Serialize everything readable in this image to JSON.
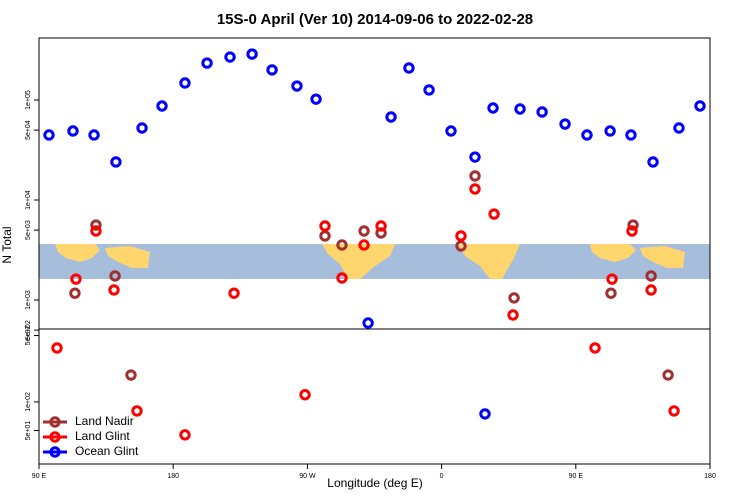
{
  "chart_data": [
    {
      "type": "scatter",
      "title": "15S-0 April (Ver 10)   2014-09-06 to 2022-02-28",
      "ylabel": "N Total",
      "log_y": true,
      "xlim": [
        90,
        540
      ],
      "ylim": [
        513,
        416900
      ],
      "yticks": [
        {
          "value": 500,
          "label": "5e+02"
        },
        {
          "value": 1000,
          "label": "1e+03"
        },
        {
          "value": 5000,
          "label": "5e+03"
        },
        {
          "value": 10000,
          "label": "1e+04"
        },
        {
          "value": 50000,
          "label": "5e+04"
        },
        {
          "value": 100000,
          "label": "1e+05"
        }
      ],
      "series": [
        {
          "name": "Land Nadir",
          "color": "#a03030",
          "x": [
            128.2,
            114.1,
            141.0,
            281.8,
            293.2,
            308.0,
            319.4,
            373.0,
            382.4,
            408.6,
            473.6,
            488.4,
            500.5
          ],
          "values": [
            5620,
            1170,
            1740,
            4370,
            3550,
            4900,
            4680,
            3470,
            17400,
            1050,
            1170,
            5620,
            1740
          ]
        },
        {
          "name": "Land Glint",
          "color": "#ff0000",
          "x": [
            128.2,
            114.8,
            140.3,
            220.8,
            281.8,
            293.2,
            308.0,
            319.4,
            373.0,
            382.4,
            395.2,
            407.9,
            474.3,
            487.7,
            500.5
          ],
          "values": [
            4900,
            1620,
            1260,
            1170,
            5500,
            1660,
            3550,
            5500,
            4370,
            12900,
            7240,
            708,
            1620,
            4900,
            1260
          ]
        },
        {
          "name": "Ocean Glint",
          "color": "#0000ff",
          "x": [
            96.7,
            112.8,
            126.9,
            141.6,
            159.1,
            172.5,
            187.9,
            202.7,
            218.1,
            232.9,
            246.3,
            263.0,
            275.8,
            326.1,
            338.1,
            351.6,
            366.3,
            382.4,
            394.5,
            412.6,
            427.4,
            442.8,
            457.5,
            473.0,
            487.0,
            501.8,
            519.2,
            533.3,
            310.7
          ],
          "values": [
            44700,
            49000,
            44700,
            24000,
            52500,
            87100,
            148000,
            234000,
            269000,
            288000,
            200000,
            138000,
            102000,
            67600,
            209000,
            126000,
            49000,
            26900,
            83200,
            81300,
            75900,
            57500,
            44700,
            49000,
            44700,
            24000,
            52500,
            87100,
            589
          ]
        }
      ]
    },
    {
      "type": "scatter",
      "xlabel": "Longitude (deg E)",
      "log_y": true,
      "legend": "lower left",
      "xlim": [
        90,
        540
      ],
      "ylim": [
        22.2,
        586
      ],
      "xticks": [
        {
          "value": 90,
          "label": "90 E"
        },
        180,
        {
          "value": 270,
          "label": "90 W"
        },
        {
          "value": 360,
          "label": "0"
        },
        {
          "value": 450,
          "label": "90 E"
        },
        {
          "value": 540,
          "label": "180"
        }
      ],
      "yticks": [
        {
          "value": 50,
          "label": "5e+01"
        },
        {
          "value": 100,
          "label": "1e+02"
        },
        {
          "value": 500,
          "label": "5e+02"
        }
      ],
      "series": [
        {
          "name": "Land Nadir",
          "color": "#a03030",
          "x": [
            151.7,
            511.9
          ],
          "values": [
            192,
            192
          ]
        },
        {
          "name": "Land Glint",
          "color": "#ff0000",
          "x": [
            102.1,
            155.7,
            187.9,
            268.4,
            462.9,
            515.9
          ],
          "values": [
            370,
            80.4,
            45.0,
            119,
            370,
            80.4
          ]
        },
        {
          "name": "Ocean Glint",
          "color": "#0000ff",
          "x": [
            389.1
          ],
          "values": [
            74.8
          ]
        }
      ]
    }
  ]
}
